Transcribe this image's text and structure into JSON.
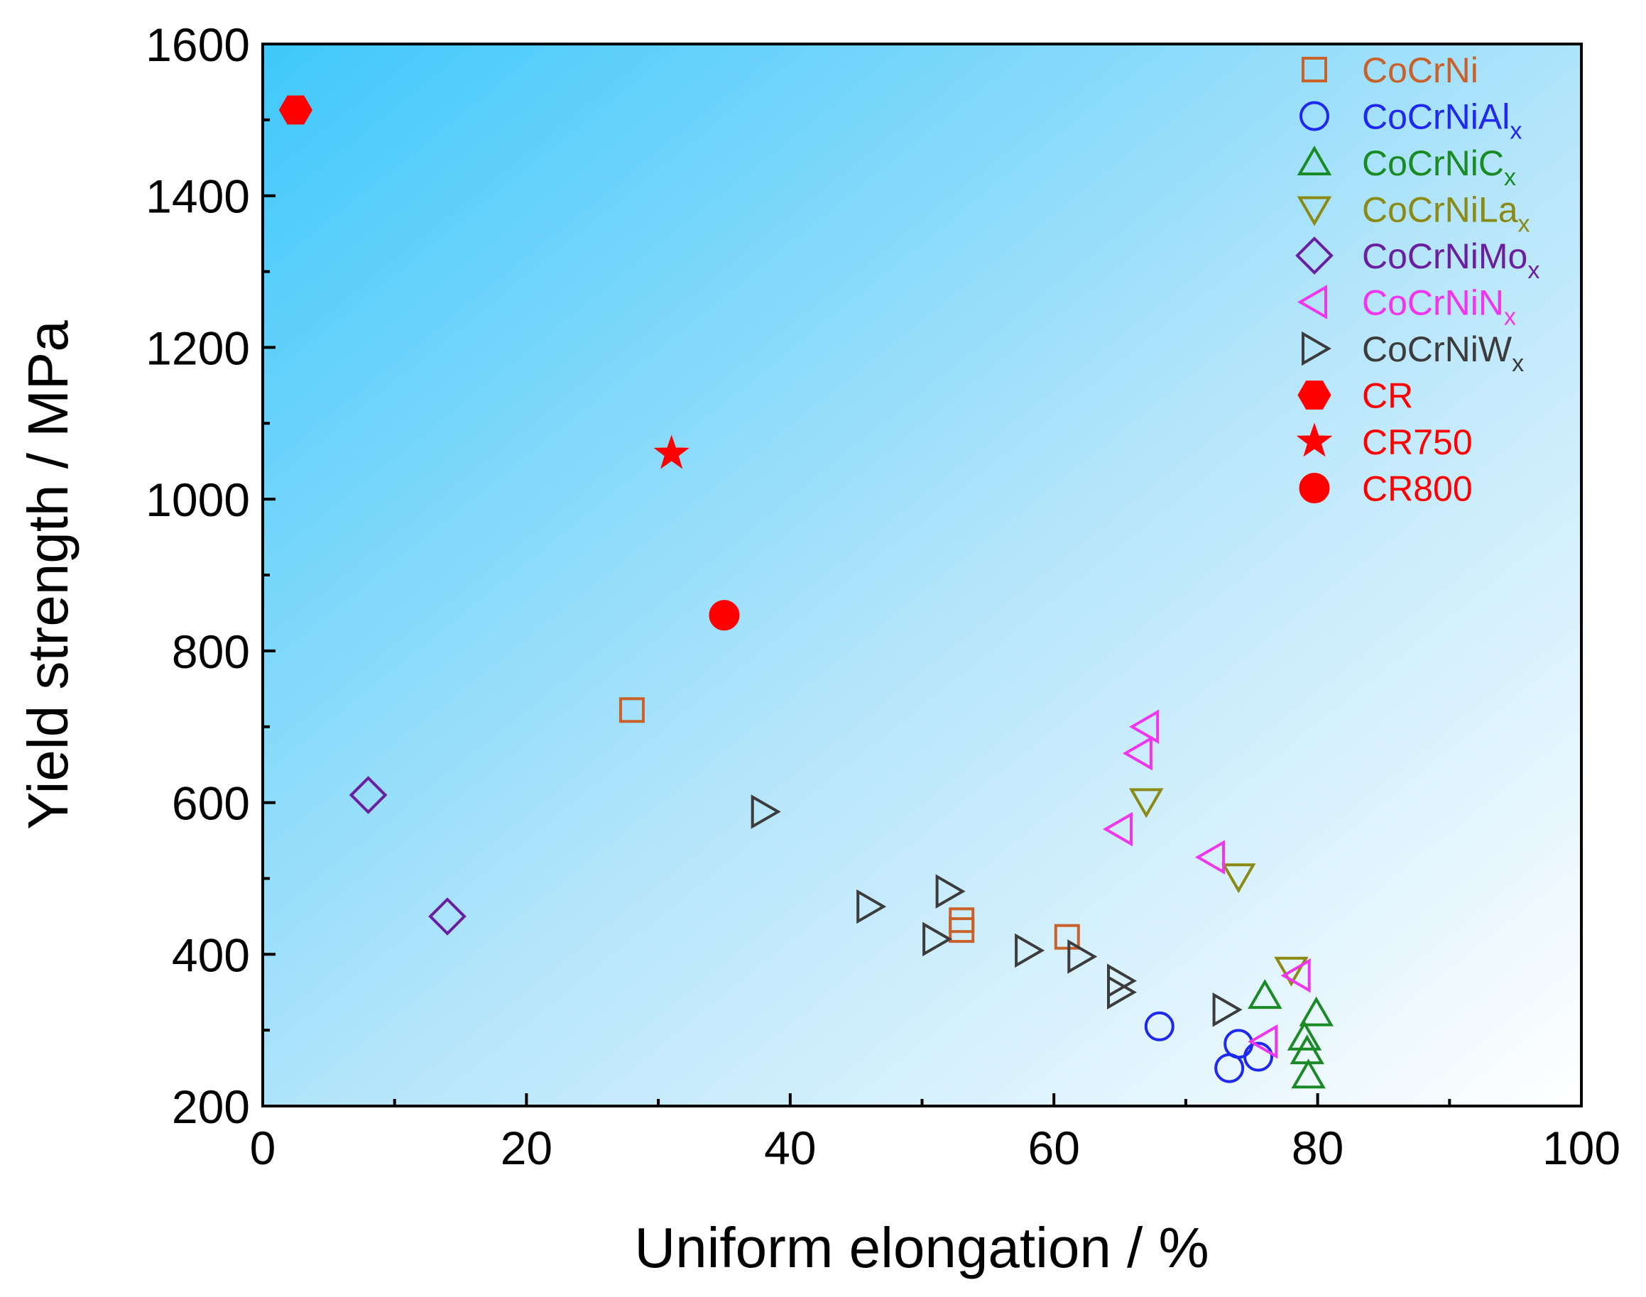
{
  "chart_data": {
    "type": "scatter",
    "xlabel": "Uniform elongation / %",
    "ylabel": "Yield strength / MPa",
    "xlim": [
      0,
      100
    ],
    "ylim": [
      200,
      1600
    ],
    "xticks": [
      "0",
      "20",
      "40",
      "60",
      "80",
      "100"
    ],
    "yticks": [
      "200",
      "400",
      "600",
      "800",
      "1000",
      "1200",
      "1400",
      "1600"
    ],
    "background": "gradient light-blue to white",
    "legend_position": "top-right",
    "series": [
      {
        "name": "CoCrNi",
        "name_sub": "",
        "marker": "square",
        "filled": false,
        "color": "#C8622A",
        "points": [
          [
            28,
            722
          ],
          [
            53,
            445
          ],
          [
            53,
            432
          ],
          [
            61,
            423
          ]
        ]
      },
      {
        "name": "CoCrNiAl",
        "name_sub": "x",
        "marker": "circle",
        "filled": false,
        "color": "#1E28F0",
        "points": [
          [
            68,
            305
          ],
          [
            74,
            282
          ],
          [
            75.5,
            265
          ],
          [
            73.3,
            250
          ]
        ]
      },
      {
        "name": "CoCrNiC",
        "name_sub": "x",
        "marker": "triangle-up",
        "filled": false,
        "color": "#1A8A24",
        "points": [
          [
            76,
            345
          ],
          [
            79.9,
            322
          ],
          [
            79,
            290
          ],
          [
            79.2,
            272
          ],
          [
            79.3,
            240
          ]
        ]
      },
      {
        "name": "CoCrNiLa",
        "name_sub": "x",
        "marker": "triangle-down",
        "filled": false,
        "color": "#8A8A14",
        "points": [
          [
            67,
            602
          ],
          [
            74,
            503
          ],
          [
            78,
            380
          ]
        ]
      },
      {
        "name": "CoCrNiMo",
        "name_sub": "x",
        "marker": "diamond",
        "filled": false,
        "color": "#6A1EA0",
        "points": [
          [
            8,
            610
          ],
          [
            14,
            450
          ]
        ]
      },
      {
        "name": "CoCrNiN",
        "name_sub": "x",
        "marker": "triangle-left",
        "filled": false,
        "color": "#F035F0",
        "points": [
          [
            67,
            700
          ],
          [
            66.5,
            665
          ],
          [
            65,
            565
          ],
          [
            72,
            528
          ],
          [
            78.5,
            372
          ],
          [
            76,
            285
          ]
        ]
      },
      {
        "name": "CoCrNiW",
        "name_sub": "x",
        "marker": "triangle-right",
        "filled": false,
        "color": "#3C3C3C",
        "points": [
          [
            38,
            588
          ],
          [
            52,
            483
          ],
          [
            46,
            463
          ],
          [
            51,
            420
          ],
          [
            58,
            405
          ],
          [
            62,
            397
          ],
          [
            65,
            365
          ],
          [
            65,
            350
          ],
          [
            73,
            327
          ]
        ]
      },
      {
        "name": "CR",
        "name_sub": "",
        "marker": "hexagon",
        "filled": true,
        "color": "#FF0000",
        "points": [
          [
            2.5,
            1513
          ]
        ]
      },
      {
        "name": "CR750",
        "name_sub": "",
        "marker": "star",
        "filled": true,
        "color": "#FF0000",
        "points": [
          [
            31,
            1060
          ]
        ]
      },
      {
        "name": "CR800",
        "name_sub": "",
        "marker": "circle",
        "filled": true,
        "color": "#FF0000",
        "points": [
          [
            35,
            847
          ]
        ]
      }
    ]
  }
}
